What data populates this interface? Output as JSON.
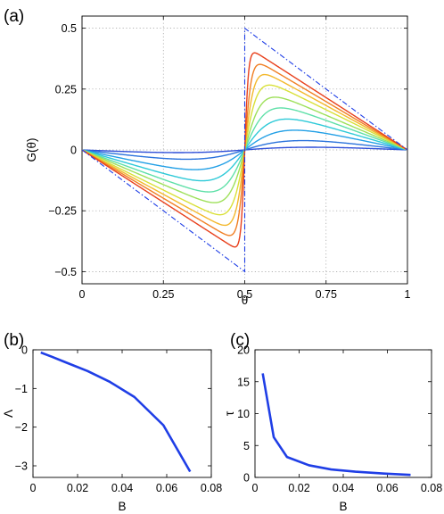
{
  "panels": [
    {
      "id": "a",
      "label": "(a)",
      "xlabel": "θ",
      "ylabel": "G(θ)",
      "xlim": [
        0,
        1
      ],
      "ylim": [
        -0.55,
        0.55
      ],
      "xticks": [
        0,
        0.25,
        0.5,
        0.75,
        1
      ],
      "xtick_labels": [
        "0",
        "0.25",
        "0.5",
        "0.75",
        "1"
      ],
      "yticks": [
        -0.5,
        -0.25,
        0,
        0.25,
        0.5
      ],
      "ytick_labels": [
        "−0.5",
        "−0.25",
        "0",
        "0.25",
        "0.5"
      ],
      "grid": true
    },
    {
      "id": "b",
      "label": "(b)",
      "xlabel": "B",
      "ylabel": "Λ",
      "xlim": [
        0,
        0.08
      ],
      "ylim": [
        -3.3,
        0
      ],
      "xticks": [
        0,
        0.02,
        0.04,
        0.06,
        0.08
      ],
      "xtick_labels": [
        "0",
        "0.02",
        "0.04",
        "0.06",
        "0.08"
      ],
      "yticks": [
        -3,
        -2,
        -1,
        0
      ],
      "ytick_labels": [
        "−3",
        "−2",
        "−1",
        "0"
      ],
      "grid": false
    },
    {
      "id": "c",
      "label": "(c)",
      "xlabel": "B",
      "ylabel": "τ",
      "xlim": [
        0,
        0.08
      ],
      "ylim": [
        0,
        20
      ],
      "xticks": [
        0,
        0.02,
        0.04,
        0.06,
        0.08
      ],
      "xtick_labels": [
        "0",
        "0.02",
        "0.04",
        "0.06",
        "0.08"
      ],
      "yticks": [
        0,
        5,
        10,
        15,
        20
      ],
      "ytick_labels": [
        "0",
        "5",
        "10",
        "15",
        "20"
      ],
      "grid": false
    }
  ],
  "chart_data": [
    {
      "type": "line",
      "panel": "a",
      "reference": {
        "style": "dash-dot",
        "color": "#1f3ee6",
        "x": [
          0,
          0.5,
          0.5,
          1
        ],
        "y": [
          0,
          -0.5,
          0.5,
          0
        ]
      },
      "series": [
        {
          "color": "#2f4fd8",
          "amplitude": 0.0272,
          "width": 0.26
        },
        {
          "color": "#2b73dc",
          "amplitude": 0.078,
          "width": 0.18
        },
        {
          "color": "#23a0e6",
          "amplitude": 0.141,
          "width": 0.13
        },
        {
          "color": "#2fcad8",
          "amplitude": 0.195,
          "width": 0.095
        },
        {
          "color": "#5fe0a8",
          "amplitude": 0.243,
          "width": 0.072
        },
        {
          "color": "#9ee05a",
          "amplitude": 0.285,
          "width": 0.055
        },
        {
          "color": "#d9e038",
          "amplitude": 0.33,
          "width": 0.041
        },
        {
          "color": "#f3b82c",
          "amplitude": 0.365,
          "width": 0.03
        },
        {
          "color": "#f07f24",
          "amplitude": 0.397,
          "width": 0.021
        },
        {
          "color": "#e8401c",
          "amplitude": 0.43,
          "width": 0.012
        }
      ]
    },
    {
      "type": "line",
      "panel": "b",
      "series": [
        {
          "color": "#1f3ee6",
          "x": [
            0.0035,
            0.0085,
            0.0145,
            0.0245,
            0.0345,
            0.0455,
            0.0585,
            0.0705
          ],
          "y": [
            -0.07,
            -0.18,
            -0.32,
            -0.55,
            -0.83,
            -1.22,
            -1.95,
            -3.15
          ]
        }
      ]
    },
    {
      "type": "line",
      "panel": "c",
      "series": [
        {
          "color": "#1f3ee6",
          "x": [
            0.0035,
            0.0085,
            0.0145,
            0.0245,
            0.0345,
            0.0455,
            0.0585,
            0.0705
          ],
          "y": [
            16.3,
            6.3,
            3.2,
            1.9,
            1.25,
            0.9,
            0.6,
            0.4
          ]
        }
      ]
    }
  ]
}
